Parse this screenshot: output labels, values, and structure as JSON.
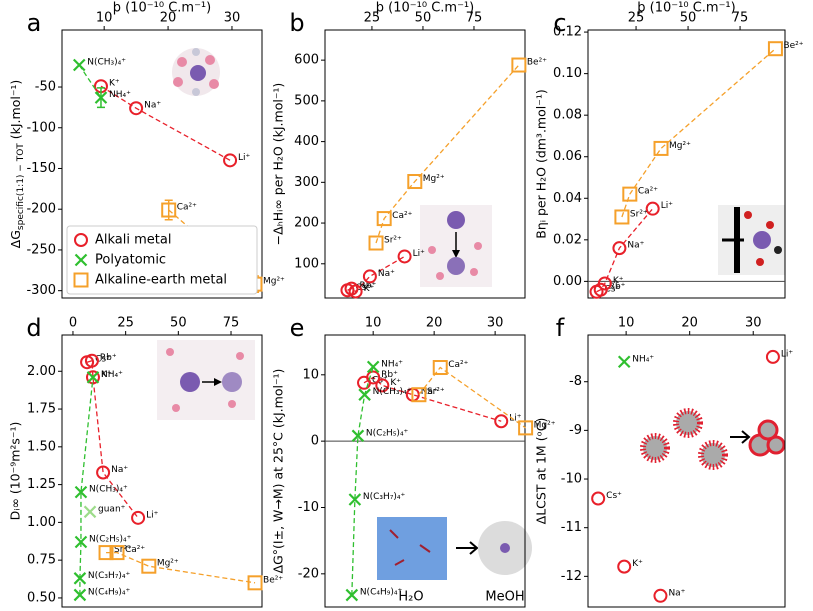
{
  "chart_data": [
    {
      "type": "scatter",
      "panel_label": "a",
      "x_label": "ϸ (10⁻¹⁰ C.m⁻¹)",
      "y_label": [
        "ΔG",
        "specific(1:1) − TOT",
        " (kJ.mol⁻¹)"
      ],
      "xlim": [
        3.4,
        34.7
      ],
      "xticks": [
        10,
        20,
        30
      ],
      "ylim": [
        -309,
        20
      ],
      "yticks": [
        -300,
        -250,
        -200,
        -150,
        -100,
        -50
      ],
      "legend": "lower left",
      "series": [
        {
          "name": "Alkali metal",
          "color": "#e8202a",
          "marker": "circle",
          "line": "dashed",
          "x": [
            9.5,
            15,
            29.7
          ],
          "values": [
            -49,
            -76,
            -140
          ],
          "labels": [
            "K⁺",
            "Na⁺",
            "Li⁺"
          ]
        },
        {
          "name": "Polyatomic",
          "color": "#2fbf2f",
          "marker": "cross",
          "line": "dashed",
          "x": [
            6.1,
            9.5
          ],
          "values": [
            -23,
            -63
          ],
          "errors": [
            null,
            12
          ],
          "labels": [
            "N(CH₃)₄⁺",
            "NH₄⁺"
          ]
        },
        {
          "name": "Alkaline-earth metal",
          "color": "#f5a02a",
          "marker": "square",
          "line": "dashed",
          "x": [
            20.1,
            33.6
          ],
          "values": [
            -201,
            -292
          ],
          "errors": [
            12,
            10
          ],
          "labels": [
            "Ca²⁺",
            "Mg²⁺"
          ]
        }
      ]
    },
    {
      "type": "scatter",
      "panel_label": "b",
      "x_label": "ϸ (10⁻¹⁰ C.m⁻¹)",
      "y_label": "−ΔₕHᵢ∞ per H₂O (kJ.mol⁻¹)",
      "xlim": [
        2,
        100
      ],
      "xticks": [
        25,
        50,
        75
      ],
      "ylim": [
        16,
        674
      ],
      "yticks": [
        100,
        200,
        300,
        400,
        500,
        600
      ],
      "series": [
        {
          "color": "#e8202a",
          "marker": "circle",
          "line": "dashed",
          "x": [
            13,
            15,
            17,
            24,
            41
          ],
          "values": [
            35,
            39,
            32,
            69,
            118
          ],
          "labels": [
            "Cs⁺",
            "Rb⁺",
            "K⁺",
            "Na⁺",
            "Li⁺"
          ]
        },
        {
          "color": "#f5a02a",
          "marker": "square",
          "line": "dashed",
          "x": [
            27,
            31,
            46,
            97
          ],
          "values": [
            151,
            211,
            302,
            588
          ],
          "labels": [
            "Sr²⁺",
            "Ca²⁺",
            "Mg²⁺",
            "Be²⁺"
          ]
        }
      ]
    },
    {
      "type": "scatter",
      "panel_label": "c",
      "x_label": "ϸ (10⁻¹⁰ C.m⁻¹)",
      "y_label": "Bηᵢ per H₂O (dm³.mol⁻¹)",
      "xlim": [
        1.9,
        96.6
      ],
      "xticks": [
        25,
        50,
        75
      ],
      "ylim": [
        -0.008,
        0.121
      ],
      "yticks": [
        {
          "value": 0,
          "label": "0.00"
        },
        0.02,
        0.04,
        0.06,
        0.08,
        {
          "value": 0.1,
          "label": "0.10"
        },
        0.12
      ],
      "zero_line": true,
      "series": [
        {
          "color": "#e8202a",
          "marker": "circle",
          "line": "dashed",
          "x": [
            6,
            8,
            10,
            17,
            33
          ],
          "values": [
            -0.005,
            -0.004,
            -0.001,
            0.016,
            0.035
          ],
          "labels": [
            "Cs⁺",
            "Rb⁺",
            "K⁺",
            "Na⁺",
            "Li⁺"
          ]
        },
        {
          "color": "#f5a02a",
          "marker": "square",
          "line": "dashed",
          "x": [
            18.2,
            22,
            37,
            92
          ],
          "values": [
            0.031,
            0.042,
            0.064,
            0.112
          ],
          "labels": [
            "Sr²⁺",
            "Ca²⁺",
            "Mg²⁺",
            "Be²⁺"
          ]
        }
      ]
    },
    {
      "type": "scatter",
      "panel_label": "d",
      "y_label": "Dᵢ∞ (10⁻⁹m²s⁻¹)",
      "xlim": [
        -5.2,
        89.7
      ],
      "xticks": [
        0,
        25,
        50,
        75
      ],
      "ylim": [
        0.44,
        2.24
      ],
      "yticks": [
        {
          "value": 0.5,
          "label": "0.50"
        },
        0.75,
        {
          "value": 1,
          "label": "1.00"
        },
        1.25,
        {
          "value": 1.5,
          "label": "1.50"
        },
        1.75,
        {
          "value": 2,
          "label": "2.00"
        }
      ],
      "series": [
        {
          "color": "#e8202a",
          "marker": "circle",
          "line": "dashed",
          "x": [
            6.7,
            9,
            9.5,
            14.3,
            30.9
          ],
          "values": [
            2.06,
            2.07,
            1.96,
            1.33,
            1.03
          ],
          "labels": [
            "Cs⁺",
            "Rb⁺",
            "K⁺",
            "Na⁺",
            "Li⁺"
          ]
        },
        {
          "color": "#2fbf2f",
          "marker": "cross",
          "line": "dashed",
          "x": [
            3.3,
            3.3,
            3.8,
            3.8,
            9.5
          ],
          "values": [
            0.52,
            0.63,
            0.87,
            1.2,
            1.96
          ],
          "labels": [
            "N(C₄H₉)₄⁺",
            "N(C₃H₇)₄⁺",
            "N(C₂H₅)₄⁺",
            "N(CH₃)₄⁺",
            "NH₄⁺"
          ]
        },
        {
          "color": "#9ddc8a",
          "marker": "cross",
          "x": [
            8.1
          ],
          "values": [
            1.07
          ],
          "labels": [
            "guan⁺"
          ]
        },
        {
          "color": "#f5a02a",
          "marker": "square",
          "line": "dashed",
          "x": [
            15.7,
            20.9,
            36,
            86.4
          ],
          "values": [
            0.8,
            0.8,
            0.71,
            0.6
          ],
          "labels": [
            "Sr²⁺",
            "Ca²⁺",
            "Mg²⁺",
            "Be²⁺"
          ]
        }
      ]
    },
    {
      "type": "scatter",
      "panel_label": "e",
      "y_label": "ΔG°(I±, W→M) at 25°C (kJ.mol⁻¹)",
      "xlim": [
        2.1,
        34.9
      ],
      "xticks": [
        10,
        20,
        30
      ],
      "ylim": [
        -25,
        16
      ],
      "yticks": [
        -20,
        -10,
        0,
        10
      ],
      "zero_line": true,
      "annotations": [
        "H₂O",
        "MeOH"
      ],
      "series": [
        {
          "color": "#e8202a",
          "marker": "circle",
          "line": "dashed",
          "x": [
            8.5,
            10,
            11.5,
            16.5,
            31
          ],
          "values": [
            8.8,
            9.6,
            8.4,
            7,
            3
          ],
          "labels": [
            "Cs⁺",
            "Rb⁺",
            "K⁺",
            "Na⁺",
            "Li⁺"
          ]
        },
        {
          "color": "#2fbf2f",
          "marker": "cross",
          "line": "dashed",
          "x": [
            6.5,
            7,
            7.5,
            8.6,
            10
          ],
          "values": [
            -23.2,
            -8.8,
            0.8,
            7,
            11.2
          ],
          "labels": [
            "N(C₄H₉)₄⁺",
            "N(C₃H₇)₄⁺",
            "N(C₂H₅)₄⁺",
            "N(CH₃)₄⁺",
            "NH₄⁺"
          ]
        },
        {
          "color": "#f5a02a",
          "marker": "square",
          "line": "dashed",
          "x": [
            17.5,
            21,
            35
          ],
          "values": [
            7,
            11.1,
            2
          ],
          "labels": [
            "Sr²⁺",
            "Ca²⁺",
            "Mg²⁺"
          ]
        }
      ]
    },
    {
      "type": "scatter",
      "panel_label": "f",
      "y_label": "ΔLCST at 1M (ᵒC)",
      "xlim": [
        4.0,
        35.0
      ],
      "xticks": [
        10,
        20,
        30
      ],
      "ylim": [
        -12.63,
        -7.04
      ],
      "yticks": [
        -12,
        -11,
        -10,
        -9,
        -8
      ],
      "series": [
        {
          "color": "#e8202a",
          "marker": "circle",
          "x": [
            5.6,
            9.7,
            15.4,
            33.1
          ],
          "values": [
            -10.4,
            -11.8,
            -12.4,
            -7.49
          ],
          "labels": [
            "Cs⁺",
            "K⁺",
            "Na⁺",
            "Li⁺"
          ]
        },
        {
          "color": "#2fbf2f",
          "marker": "cross",
          "x": [
            9.7
          ],
          "values": [
            -7.59
          ],
          "labels": [
            "NH₄⁺"
          ]
        }
      ]
    }
  ]
}
